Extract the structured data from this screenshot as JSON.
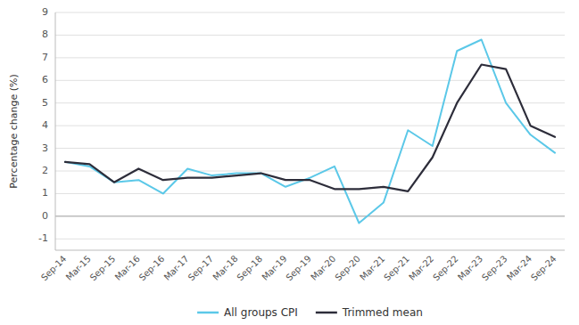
{
  "chart_data": {
    "type": "line",
    "categories": [
      "Sep-14",
      "Mar-15",
      "Sep-15",
      "Mar-16",
      "Sep-16",
      "Mar-17",
      "Sep-17",
      "Mar-18",
      "Sep-18",
      "Mar-19",
      "Sep-19",
      "Mar-20",
      "Sep-20",
      "Mar-21",
      "Sep-21",
      "Mar-22",
      "Sep-22",
      "Mar-23",
      "Sep-23",
      "Mar-24",
      "Sep-24"
    ],
    "series": [
      {
        "name": "All groups CPI",
        "color": "#5bc8e8",
        "values": [
          2.4,
          2.2,
          1.5,
          1.6,
          1.0,
          2.1,
          1.8,
          1.9,
          1.9,
          1.3,
          1.7,
          2.2,
          -0.3,
          0.6,
          3.8,
          3.1,
          7.3,
          7.8,
          5.0,
          3.6,
          2.8
        ]
      },
      {
        "name": "Trimmed mean",
        "color": "#2d2d3a",
        "values": [
          2.4,
          2.3,
          1.5,
          2.1,
          1.6,
          1.7,
          1.7,
          1.8,
          1.9,
          1.6,
          1.6,
          1.2,
          1.2,
          1.3,
          1.1,
          2.6,
          5.0,
          6.7,
          6.5,
          4.0,
          3.5
        ]
      }
    ],
    "y_label": "Percentage change (%)",
    "ylim": [
      -1.5,
      9
    ],
    "yticks": [
      -1,
      0,
      1,
      2,
      3,
      4,
      5,
      6,
      7,
      8,
      9
    ],
    "grid": true,
    "legend": "bottom"
  }
}
